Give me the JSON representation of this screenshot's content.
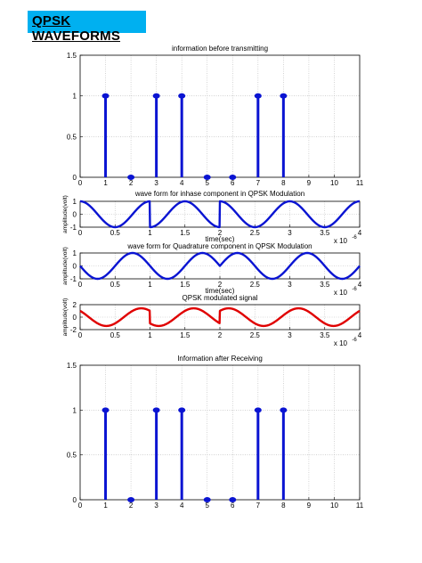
{
  "page": {
    "heading": "QPSK  WAVEFORMS"
  },
  "colors": {
    "blue": "#0a14d2",
    "red": "#e00000",
    "grid": "#b8b8b8",
    "heading_bg": "#00b0f0"
  },
  "chart_data": [
    {
      "id": "stem-before",
      "type": "stem",
      "title": "information before transmitting",
      "x": [
        1,
        2,
        3,
        4,
        5,
        6,
        7,
        8
      ],
      "values": [
        1,
        0,
        1,
        1,
        0,
        0,
        1,
        1
      ],
      "xlim": [
        0,
        11
      ],
      "ylim": [
        0,
        1.5
      ],
      "xticks": [
        "0",
        "1",
        "2",
        "3",
        "4",
        "5",
        "6",
        "7",
        "8",
        "9",
        "10",
        "11"
      ],
      "yticks": [
        "0",
        "0.5",
        "1",
        "1.5"
      ],
      "xlabel": "",
      "ylabel": "",
      "grid": true
    },
    {
      "id": "inphase",
      "type": "line",
      "title": "wave form for inhase component in QPSK Modulation",
      "bits": [
        1,
        0,
        1,
        1
      ],
      "amplitude": 1,
      "xlim": [
        0,
        4
      ],
      "ylim": [
        -1,
        1
      ],
      "xticks": [
        "0",
        "0.5",
        "1",
        "1.5",
        "2",
        "2.5",
        "3",
        "3.5",
        "4"
      ],
      "yticks": [
        "-1",
        "0",
        "1"
      ],
      "xlabel": "time(sec)",
      "ylabel": "amplitude(volt)",
      "exponent_base": "x 10",
      "exponent": "-6",
      "grid": true
    },
    {
      "id": "quadrature",
      "type": "line",
      "title": "wave form for Quadrature component in QPSK Modulation",
      "bits": [
        0,
        0,
        1,
        1
      ],
      "amplitude": 1,
      "xlim": [
        0,
        4
      ],
      "ylim": [
        -1,
        1
      ],
      "xticks": [
        "0",
        "0.5",
        "1",
        "1.5",
        "2",
        "2.5",
        "3",
        "3.5",
        "4"
      ],
      "yticks": [
        "-1",
        "0",
        "1"
      ],
      "xlabel": "time(sec)",
      "ylabel": "amplitude(volt)",
      "exponent_base": "x 10",
      "exponent": "-6",
      "grid": true
    },
    {
      "id": "modulated",
      "type": "line",
      "title": "QPSK modulated signal",
      "i_bits": [
        1,
        0,
        1,
        1
      ],
      "q_bits": [
        0,
        0,
        1,
        1
      ],
      "amplitude": 1.414,
      "xlim": [
        0,
        4
      ],
      "ylim": [
        -2,
        2
      ],
      "xticks": [
        "0",
        "0.5",
        "1",
        "1.5",
        "2",
        "2.5",
        "3",
        "3.5",
        "4"
      ],
      "yticks": [
        "-2",
        "0",
        "2"
      ],
      "xlabel": "",
      "ylabel": "amplitude(volt)",
      "exponent_base": "x 10",
      "exponent": "-6",
      "grid": true
    },
    {
      "id": "stem-after",
      "type": "stem",
      "title": "Information after Receiving",
      "x": [
        1,
        2,
        3,
        4,
        5,
        6,
        7,
        8
      ],
      "values": [
        1,
        0,
        1,
        1,
        0,
        0,
        1,
        1
      ],
      "xlim": [
        0,
        11
      ],
      "ylim": [
        0,
        1.5
      ],
      "xticks": [
        "0",
        "1",
        "2",
        "3",
        "4",
        "5",
        "6",
        "7",
        "8",
        "9",
        "10",
        "11"
      ],
      "yticks": [
        "0",
        "0.5",
        "1",
        "1.5"
      ],
      "xlabel": "",
      "ylabel": "",
      "grid": true
    }
  ]
}
